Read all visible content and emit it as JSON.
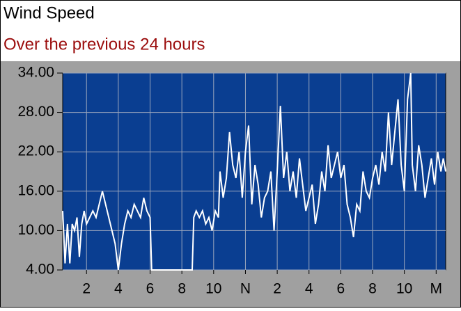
{
  "chart_data": {
    "type": "line",
    "title": "Wind Speed",
    "subtitle": "Over the previous 24  hours",
    "x": [
      0.5,
      0.65,
      0.8,
      0.95,
      1.1,
      1.25,
      1.4,
      1.55,
      1.7,
      1.85,
      2.0,
      2.2,
      2.4,
      2.6,
      2.8,
      3.0,
      3.2,
      3.4,
      3.6,
      3.8,
      3.9,
      4.0,
      4.2,
      4.4,
      4.6,
      4.8,
      5.0,
      5.2,
      5.4,
      5.6,
      5.8,
      6.0,
      6.1,
      8.65,
      8.75,
      8.9,
      9.1,
      9.3,
      9.5,
      9.7,
      9.9,
      10.1,
      10.3,
      10.4,
      10.6,
      10.8,
      11.0,
      11.2,
      11.4,
      11.6,
      11.8,
      12.0,
      12.2,
      12.4,
      12.6,
      12.8,
      13.0,
      13.2,
      13.4,
      13.6,
      13.8,
      14.0,
      14.2,
      14.4,
      14.6,
      14.8,
      15.0,
      15.2,
      15.4,
      15.6,
      15.8,
      16.0,
      16.2,
      16.4,
      16.6,
      16.8,
      17.0,
      17.2,
      17.4,
      17.6,
      17.8,
      18.0,
      18.2,
      18.4,
      18.6,
      18.8,
      19.0,
      19.2,
      19.4,
      19.6,
      19.8,
      20.0,
      20.2,
      20.4,
      20.6,
      20.8,
      21.0,
      21.2,
      21.4,
      21.6,
      21.8,
      22.0,
      22.2,
      22.4,
      22.5,
      22.7,
      22.9,
      23.1,
      23.3,
      23.5,
      23.7,
      23.9,
      24.1,
      24.3,
      24.45,
      24.6
    ],
    "series": [
      {
        "name": "Wind Speed",
        "color": "#ffffff",
        "values": [
          13,
          5,
          11,
          5,
          11,
          10,
          12,
          6,
          11,
          13,
          11,
          12,
          13,
          12,
          14,
          16,
          14,
          12,
          10,
          8,
          6,
          4,
          8,
          11,
          13,
          12,
          14,
          13,
          12,
          15,
          13,
          12,
          4,
          4,
          12,
          13,
          12,
          13,
          11,
          12,
          10,
          13,
          12,
          19,
          15,
          18,
          25,
          20,
          18,
          22,
          15,
          22,
          26,
          14,
          20,
          17,
          12,
          15,
          16,
          19,
          10,
          19,
          29,
          18,
          22,
          16,
          19,
          15,
          21,
          17,
          13,
          15,
          17,
          11,
          14,
          19,
          16,
          23,
          18,
          20,
          22,
          18,
          20,
          14,
          12,
          9,
          14,
          13,
          19,
          16,
          15,
          18,
          20,
          17,
          22,
          19,
          28,
          20,
          25,
          30,
          20,
          16,
          30,
          34,
          20,
          16,
          23,
          20,
          15,
          18,
          21,
          17,
          22,
          19,
          21,
          19
        ]
      }
    ],
    "xlim": [
      0.5,
      24.6
    ],
    "xticks": [
      2,
      4,
      6,
      8,
      10,
      {
        "value": 12,
        "label": "N"
      },
      {
        "value": 14,
        "label": "2"
      },
      {
        "value": 16,
        "label": "4"
      },
      {
        "value": 18,
        "label": "6"
      },
      {
        "value": 20,
        "label": "8"
      },
      {
        "value": 22,
        "label": "10"
      },
      {
        "value": 24,
        "label": "M"
      }
    ],
    "ylim": [
      4,
      34
    ],
    "yticks": [
      {
        "value": 4,
        "label": "4.00"
      },
      {
        "value": 10,
        "label": "10.00"
      },
      {
        "value": 16,
        "label": "16.00"
      },
      {
        "value": 22,
        "label": "22.00"
      },
      {
        "value": 28,
        "label": "28.00"
      },
      {
        "value": 34,
        "label": "34.00"
      }
    ],
    "grid": true,
    "background": "#0a3e91"
  }
}
